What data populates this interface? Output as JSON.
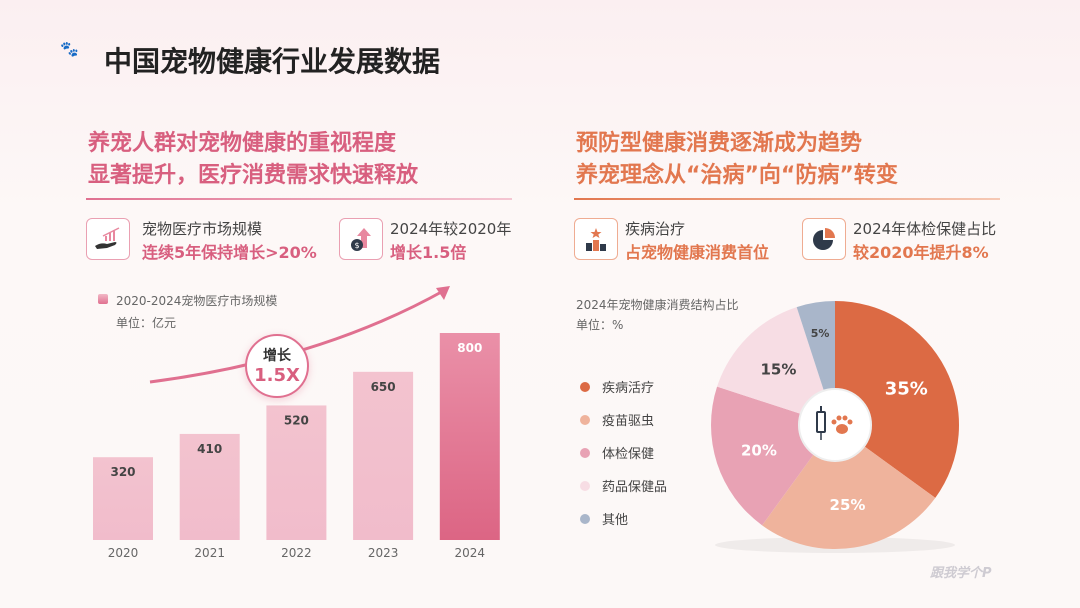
{
  "title": "中国宠物健康行业发展数据",
  "left": {
    "headline": [
      "养宠人群对宠物健康的重视程度",
      "显著提升，医疗消费需求快速释放"
    ],
    "cards": [
      {
        "label": "宠物医疗市场规模",
        "highlight": "连续5年保持增长>20%",
        "icon": "hand-growth-chart-icon"
      },
      {
        "label": "2024年较2020年",
        "highlight": "增长1.5倍",
        "icon": "coin-arrow-up-icon"
      }
    ],
    "accent": "#d85f7f"
  },
  "right": {
    "headline": [
      "预防型健康消费逐渐成为趋势",
      "养宠理念从“治病”向“防病”转变"
    ],
    "cards": [
      {
        "label": "疾病治疗",
        "highlight": "占宠物健康消费首位",
        "icon": "podium-star-icon"
      },
      {
        "label": "2024年体检保健占比",
        "highlight": "较2020年提升8%",
        "icon": "pie-chart-icon"
      }
    ],
    "accent": "#e2774f"
  },
  "badge": {
    "line1": "增长",
    "line2": "1.5X"
  },
  "watermark": "跟我学个P",
  "chart_data": [
    {
      "type": "bar",
      "title": "2020-2024宠物医疗市场规模",
      "unit": "单位：亿元",
      "categories": [
        "2020",
        "2021",
        "2022",
        "2023",
        "2024"
      ],
      "values": [
        320,
        410,
        520,
        650,
        800
      ],
      "color": "#e2708e"
    },
    {
      "type": "pie",
      "title": "2024年宠物健康消费结构占比",
      "unit": "单位：%",
      "categories": [
        "疾病活疗",
        "疫苗驱虫",
        "体检保健",
        "药品保健品",
        "其他"
      ],
      "values": [
        35,
        25,
        20,
        15,
        5
      ],
      "labels": [
        "35%",
        "25%",
        "20%",
        "15%",
        "5%"
      ],
      "colors": [
        "#dc6a44",
        "#efb39c",
        "#e8a2b4",
        "#f7dde4",
        "#a9b6ca"
      ],
      "legend": "left"
    }
  ]
}
